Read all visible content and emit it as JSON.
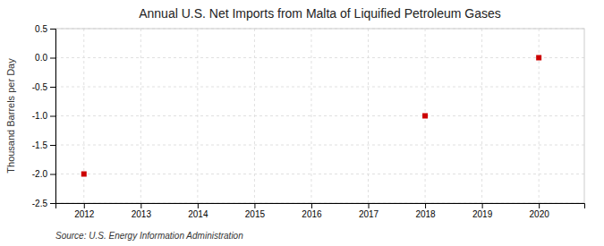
{
  "chart_data": {
    "type": "scatter",
    "title": "Annual U.S. Net Imports from Malta of Liquified Petroleum Gases",
    "ylabel": "Thousand Barrels per Day",
    "source": "Source: U.S. Energy Information Administration",
    "x": [
      2012,
      2018,
      2020
    ],
    "values": [
      -2.0,
      -1.0,
      0.0
    ],
    "color": "#cc0000",
    "marker": "square",
    "xlim": [
      2011.5,
      2020.8
    ],
    "ylim": [
      -2.5,
      0.5
    ],
    "xticks": [
      2012,
      2013,
      2014,
      2015,
      2016,
      2017,
      2018,
      2019,
      2020
    ],
    "yticks": [
      0.5,
      {
        "value": 0.0,
        "label": "0.0"
      },
      -0.5,
      {
        "value": -1.0,
        "label": "-1.0"
      },
      -1.5,
      {
        "value": -2.0,
        "label": "-2.0"
      },
      -2.5
    ],
    "grid": true
  }
}
